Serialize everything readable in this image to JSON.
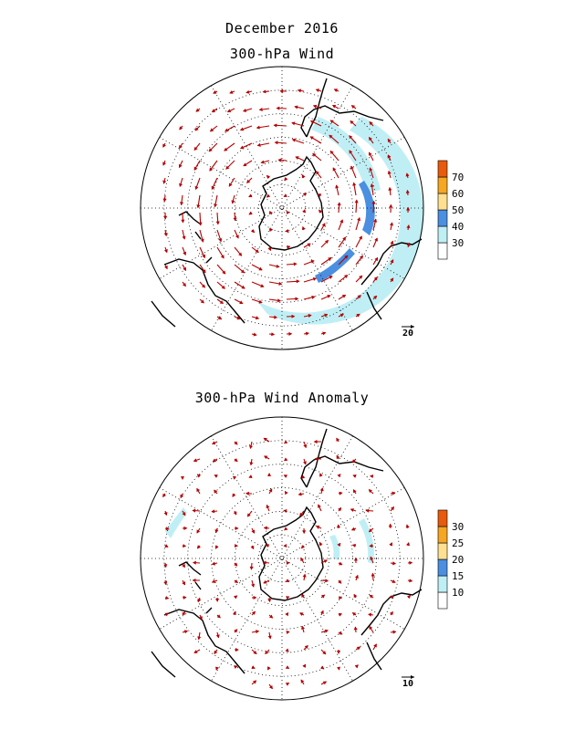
{
  "header": {
    "period": "December 2016",
    "title_top": "300-hPa Wind",
    "title_bottom": "300-hPa Wind Anomaly"
  },
  "panels": [
    {
      "id": "wind",
      "reference_vector": "20",
      "colorbar": {
        "levels": [
          "30",
          "40",
          "50",
          "60",
          "70"
        ],
        "colors": [
          "#ffffff",
          "#bfeff5",
          "#4a8fe0",
          "#ffe090",
          "#f5a623",
          "#e85a0c"
        ]
      }
    },
    {
      "id": "anomaly",
      "reference_vector": "10",
      "colorbar": {
        "levels": [
          "10",
          "15",
          "20",
          "25",
          "30"
        ],
        "colors": [
          "#ffffff",
          "#bfeff5",
          "#4a8fe0",
          "#ffe090",
          "#f5a623",
          "#e85a0c"
        ]
      }
    }
  ],
  "style": {
    "vector_color": "#b30000",
    "coast_color": "#000000",
    "grid_color": "#000000"
  }
}
